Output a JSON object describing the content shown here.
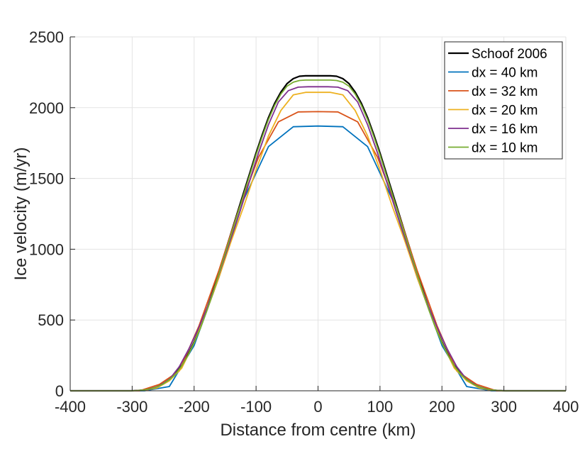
{
  "chart_data": {
    "type": "line",
    "title": "",
    "xlabel": "Distance from centre (km)",
    "ylabel": "Ice velocity (m/yr)",
    "xlim": [
      -400,
      400
    ],
    "ylim": [
      0,
      2500
    ],
    "xticks": [
      -400,
      -300,
      -200,
      -100,
      0,
      100,
      200,
      300,
      400
    ],
    "yticks": [
      0,
      500,
      1000,
      1500,
      2000,
      2500
    ],
    "grid": true,
    "legend_position": "top-right",
    "series": [
      {
        "name": "Schoof 2006",
        "color": "#000000",
        "x": [
          -400,
          -300,
          -290,
          -280,
          -270,
          -260,
          -250,
          -240,
          -230,
          -220,
          -210,
          -200,
          -190,
          -180,
          -170,
          -160,
          -150,
          -140,
          -130,
          -120,
          -110,
          -100,
          -90,
          -80,
          -70,
          -60,
          -50,
          -40,
          -30,
          -20,
          -10,
          0,
          10,
          20,
          30,
          40,
          50,
          60,
          70,
          80,
          90,
          100,
          110,
          120,
          130,
          140,
          150,
          160,
          170,
          180,
          190,
          200,
          210,
          220,
          230,
          240,
          250,
          260,
          270,
          280,
          290,
          300,
          400
        ],
        "y": [
          0,
          0,
          2,
          6,
          14,
          27,
          50,
          80,
          120,
          180,
          255,
          345,
          450,
          570,
          700,
          840,
          980,
          1120,
          1260,
          1400,
          1540,
          1680,
          1810,
          1930,
          2030,
          2110,
          2170,
          2205,
          2222,
          2225,
          2225,
          2225,
          2225,
          2225,
          2222,
          2205,
          2170,
          2110,
          2030,
          1930,
          1810,
          1680,
          1540,
          1400,
          1260,
          1120,
          980,
          840,
          700,
          570,
          450,
          345,
          255,
          180,
          120,
          80,
          50,
          27,
          14,
          6,
          2,
          0,
          0
        ]
      },
      {
        "name": "dx = 40 km",
        "color": "#0072BD",
        "x": [
          -400,
          -280,
          -240,
          -200,
          -160,
          -120,
          -80,
          -40,
          0,
          40,
          80,
          120,
          160,
          200,
          240,
          280,
          400
        ],
        "y": [
          0,
          0,
          30,
          320,
          800,
          1350,
          1725,
          1865,
          1870,
          1865,
          1725,
          1350,
          800,
          320,
          30,
          0,
          0
        ]
      },
      {
        "name": "dx = 32 km",
        "color": "#D95319",
        "x": [
          -400,
          -288,
          -256,
          -224,
          -192,
          -160,
          -128,
          -96,
          -64,
          -32,
          0,
          32,
          64,
          96,
          128,
          160,
          192,
          224,
          256,
          288,
          400
        ],
        "y": [
          0,
          0,
          45,
          140,
          460,
          850,
          1280,
          1650,
          1900,
          1970,
          1972,
          1970,
          1900,
          1650,
          1280,
          850,
          460,
          140,
          45,
          0,
          0
        ]
      },
      {
        "name": "dx = 20 km",
        "color": "#EDB120",
        "x": [
          -400,
          -300,
          -280,
          -260,
          -240,
          -220,
          -200,
          -180,
          -160,
          -140,
          -120,
          -100,
          -80,
          -60,
          -40,
          -20,
          0,
          20,
          40,
          60,
          80,
          100,
          120,
          140,
          160,
          180,
          200,
          220,
          240,
          260,
          280,
          300,
          400
        ],
        "y": [
          0,
          0,
          3,
          20,
          70,
          160,
          340,
          560,
          800,
          1060,
          1300,
          1560,
          1800,
          1980,
          2090,
          2108,
          2108,
          2108,
          2090,
          1980,
          1800,
          1560,
          1300,
          1060,
          800,
          560,
          340,
          160,
          70,
          20,
          3,
          0,
          0
        ]
      },
      {
        "name": "dx = 16 km",
        "color": "#7E2F8E",
        "x": [
          -400,
          -304,
          -288,
          -272,
          -256,
          -240,
          -224,
          -208,
          -192,
          -176,
          -160,
          -144,
          -128,
          -112,
          -96,
          -80,
          -64,
          -48,
          -32,
          -16,
          0,
          16,
          32,
          48,
          64,
          80,
          96,
          112,
          128,
          144,
          160,
          176,
          192,
          208,
          224,
          240,
          256,
          272,
          288,
          304,
          400
        ],
        "y": [
          0,
          0,
          2,
          10,
          35,
          80,
          170,
          300,
          450,
          620,
          820,
          1030,
          1240,
          1460,
          1680,
          1880,
          2040,
          2120,
          2145,
          2148,
          2148,
          2148,
          2145,
          2120,
          2040,
          1880,
          1680,
          1460,
          1240,
          1030,
          820,
          620,
          450,
          300,
          170,
          80,
          35,
          10,
          2,
          0,
          0
        ]
      },
      {
        "name": "dx = 10 km",
        "color": "#77AC30",
        "x": [
          -400,
          -300,
          -290,
          -280,
          -270,
          -260,
          -250,
          -240,
          -230,
          -220,
          -210,
          -200,
          -190,
          -180,
          -170,
          -160,
          -150,
          -140,
          -130,
          -120,
          -110,
          -100,
          -90,
          -80,
          -70,
          -60,
          -50,
          -40,
          -30,
          -20,
          -10,
          0,
          10,
          20,
          30,
          40,
          50,
          60,
          70,
          80,
          90,
          100,
          110,
          120,
          130,
          140,
          150,
          160,
          170,
          180,
          190,
          200,
          210,
          220,
          230,
          240,
          250,
          260,
          270,
          280,
          290,
          300,
          400
        ],
        "y": [
          0,
          0,
          2,
          6,
          14,
          27,
          48,
          78,
          118,
          176,
          250,
          338,
          440,
          558,
          688,
          826,
          966,
          1106,
          1246,
          1386,
          1526,
          1666,
          1796,
          1916,
          2016,
          2096,
          2152,
          2180,
          2192,
          2195,
          2195,
          2195,
          2195,
          2195,
          2192,
          2180,
          2152,
          2096,
          2016,
          1916,
          1796,
          1666,
          1526,
          1386,
          1246,
          1106,
          966,
          826,
          688,
          558,
          440,
          338,
          250,
          176,
          118,
          78,
          48,
          27,
          14,
          6,
          2,
          0,
          0
        ]
      }
    ]
  }
}
